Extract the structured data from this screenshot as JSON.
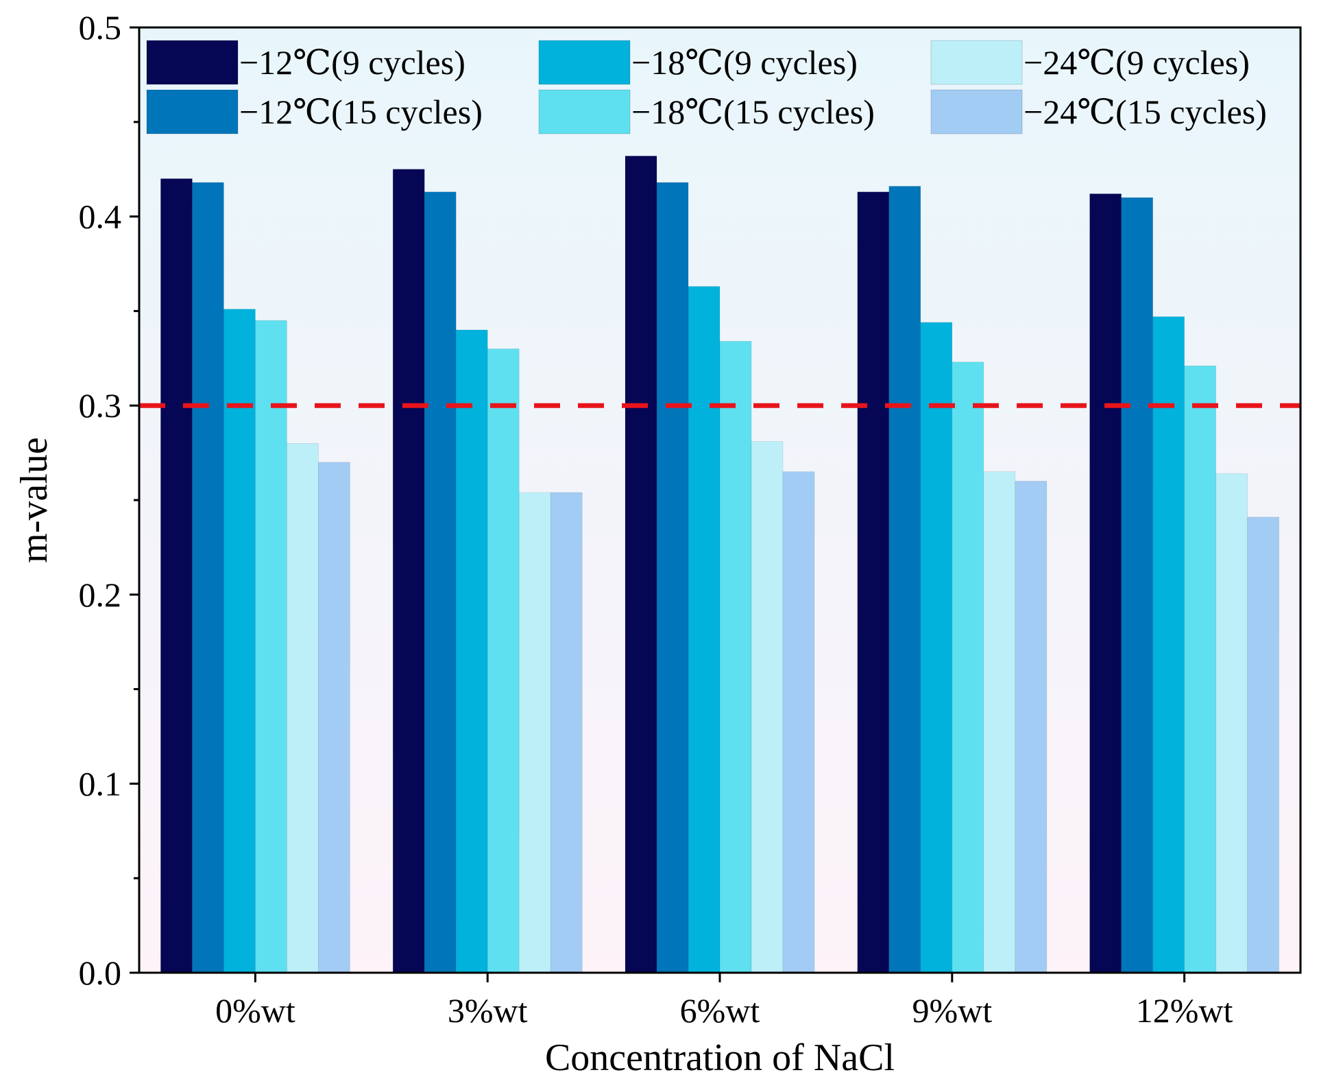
{
  "chart_data": {
    "type": "bar",
    "title": "",
    "xlabel": "Concentration of NaCl",
    "ylabel": "m-value",
    "ylim": [
      0,
      0.5
    ],
    "yticks": [
      "0.0",
      "0.1",
      "0.2",
      "0.3",
      "0.4",
      "0.5"
    ],
    "categories": [
      "0%wt",
      "3%wt",
      "6%wt",
      "9%wt",
      "12%wt"
    ],
    "series": [
      {
        "name": "−12℃(9 cycles)",
        "color": "#050654",
        "values": [
          0.42,
          0.425,
          0.432,
          0.413,
          0.412
        ]
      },
      {
        "name": "−12℃(15 cycles)",
        "color": "#0075BA",
        "values": [
          0.418,
          0.413,
          0.418,
          0.416,
          0.41
        ]
      },
      {
        "name": "−18℃(9 cycles)",
        "color": "#00B2DC",
        "values": [
          0.351,
          0.34,
          0.363,
          0.344,
          0.347
        ]
      },
      {
        "name": "−18℃(15 cycles)",
        "color": "#5EE0F0",
        "values": [
          0.345,
          0.33,
          0.334,
          0.323,
          0.321
        ]
      },
      {
        "name": "−24℃(9 cycles)",
        "color": "#BDEFF9",
        "values": [
          0.28,
          0.254,
          0.281,
          0.265,
          0.264
        ]
      },
      {
        "name": "−24℃(15 cycles)",
        "color": "#A3CCF4",
        "values": [
          0.27,
          0.254,
          0.265,
          0.26,
          0.241
        ]
      }
    ],
    "reference_line": {
      "value": 0.3,
      "color": "#E8141B",
      "style": "dashed"
    },
    "background_gradient": [
      "#E8F6FB",
      "#FDF3F9"
    ],
    "legend": {
      "placement": "top",
      "columns": 3
    },
    "grid": false
  }
}
